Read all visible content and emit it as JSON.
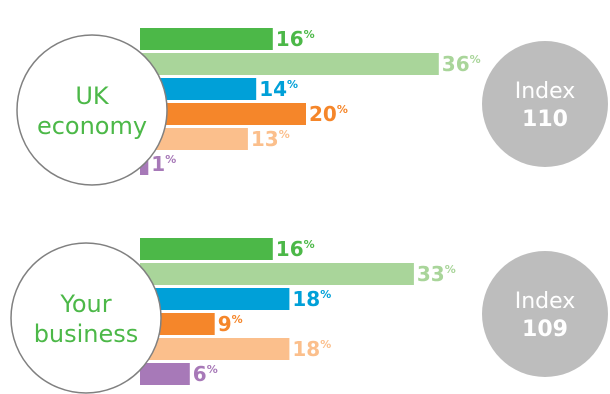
{
  "chart_data": [
    {
      "type": "bar",
      "orientation": "horizontal",
      "title": "UK economy",
      "title_lines": [
        "UK",
        "economy"
      ],
      "index_label": "Index",
      "index_value": "110",
      "unit": "%",
      "values": [
        16,
        36,
        14,
        20,
        13,
        1
      ]
    },
    {
      "type": "bar",
      "orientation": "horizontal",
      "title": "Your business",
      "title_lines": [
        "Your",
        "business"
      ],
      "index_label": "Index",
      "index_value": "109",
      "unit": "%",
      "values": [
        16,
        33,
        18,
        9,
        18,
        6
      ]
    }
  ],
  "colors": {
    "bars": [
      "#4cb848",
      "#a9d59a",
      "#00a0d8",
      "#f5862a",
      "#fbbf8c",
      "#a779b8"
    ],
    "labels": [
      "#4cb848",
      "#a9d59a",
      "#00a0d8",
      "#f5862a",
      "#fbbf8c",
      "#a779b8"
    ],
    "circle_text": "#4cb848",
    "index_circle": "#bdbdbd"
  }
}
